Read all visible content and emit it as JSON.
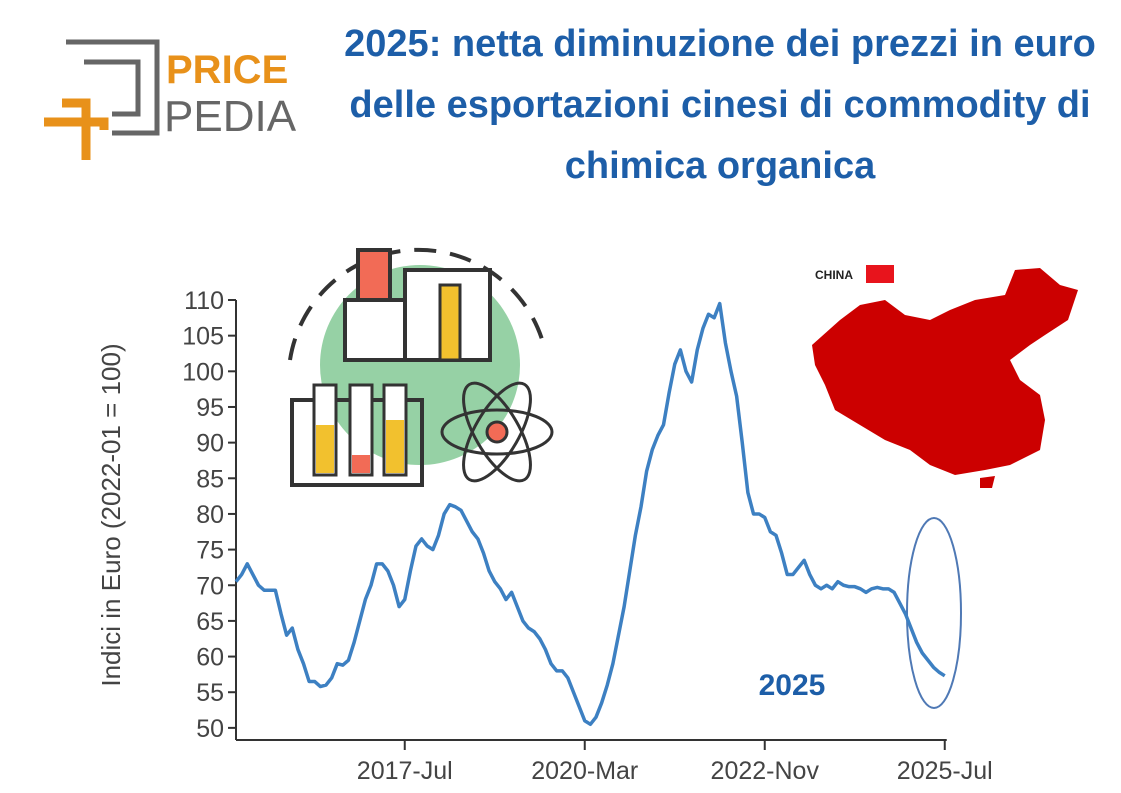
{
  "logo": {
    "top": "PRICE",
    "bottom": "PEDIA"
  },
  "map_label": "CHINA",
  "chart_data": {
    "type": "line",
    "title": "2025: netta diminuzione dei prezzi in euro delle esportazioni cinesi di commodity di chimica organica",
    "y_label": "Indici in Euro (2022-01 = 100)",
    "annotation": "2025",
    "color": "#3d80c2",
    "categories": [
      null,
      null,
      null,
      null,
      null,
      null,
      null,
      null,
      null,
      null,
      null,
      null,
      null,
      null,
      null,
      null,
      null,
      null,
      null,
      null,
      null,
      null,
      null,
      null,
      null,
      null,
      null,
      null,
      null,
      null,
      "2017-Jul",
      null,
      null,
      null,
      null,
      null,
      null,
      null,
      null,
      null,
      null,
      null,
      null,
      null,
      null,
      null,
      null,
      null,
      null,
      null,
      null,
      null,
      null,
      null,
      null,
      null,
      null,
      null,
      null,
      null,
      null,
      null,
      "2020-Mar",
      null,
      null,
      null,
      null,
      null,
      null,
      null,
      null,
      null,
      null,
      null,
      null,
      null,
      null,
      null,
      null,
      null,
      null,
      null,
      null,
      null,
      null,
      null,
      null,
      null,
      null,
      null,
      null,
      null,
      null,
      null,
      "2022-Nov",
      null,
      null,
      null,
      null,
      null,
      null,
      null,
      null,
      null,
      null,
      null,
      null,
      null,
      null,
      null,
      null,
      null,
      null,
      null,
      null,
      null,
      null,
      null,
      null,
      null,
      null,
      null,
      null,
      null,
      null,
      null,
      "2025-Jul"
    ],
    "values": [
      70.5,
      71.5,
      73,
      71.5,
      70,
      69.3,
      69.3,
      69.3,
      66,
      63,
      64,
      61,
      59,
      56.5,
      56.5,
      55.8,
      56,
      57,
      59,
      58.8,
      59.5,
      62,
      65,
      68,
      70,
      73,
      73,
      72,
      70,
      67,
      68,
      72,
      75.5,
      76.5,
      75.5,
      75,
      77,
      80,
      81.3,
      81,
      80.5,
      79,
      77.5,
      76.5,
      74.5,
      72,
      70.5,
      69.5,
      68,
      69,
      67,
      65,
      64,
      63.5,
      62.5,
      61,
      59,
      58,
      58,
      57,
      55,
      53,
      51,
      50.5,
      51.5,
      53.5,
      56,
      59,
      63,
      67,
      72,
      77,
      81,
      86,
      89,
      91,
      92.5,
      97,
      101,
      103,
      100,
      98.5,
      103,
      106,
      108,
      107.5,
      109.5,
      104,
      100,
      96.5,
      90,
      83,
      80,
      80,
      79.5,
      77.5,
      77,
      74.5,
      71.5,
      71.5,
      72.5,
      73.5,
      71.5,
      70,
      69.5,
      70,
      69.5,
      70.5,
      70,
      69.8,
      69.8,
      69.5,
      69,
      69.5,
      69.7,
      69.5,
      69.5,
      69,
      67.5,
      66,
      64,
      62,
      60.5,
      59.5,
      58.5,
      57.8,
      57.3
    ],
    "ylim": [
      48.3,
      110
    ],
    "yticks": [
      50,
      55,
      60,
      65,
      70,
      75,
      80,
      85,
      90,
      95,
      100,
      105,
      110
    ]
  }
}
